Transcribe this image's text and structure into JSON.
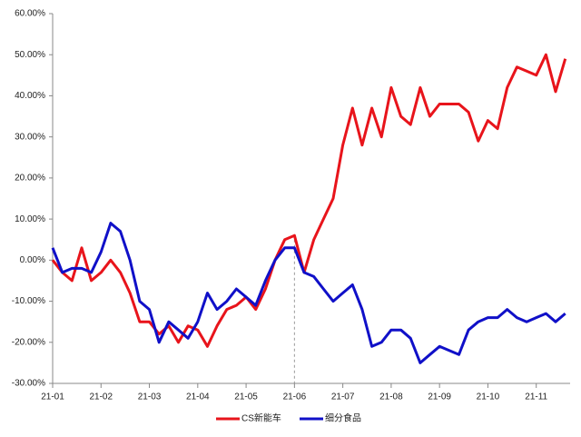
{
  "chart_data": {
    "type": "line",
    "x": [
      0,
      0.2,
      0.4,
      0.6,
      0.8,
      1,
      1.2,
      1.4,
      1.6,
      1.8,
      2,
      2.2,
      2.4,
      2.6,
      2.8,
      3,
      3.2,
      3.4,
      3.6,
      3.8,
      4,
      4.2,
      4.4,
      4.6,
      4.8,
      5,
      5.2,
      5.4,
      5.6,
      5.8,
      6,
      6.2,
      6.4,
      6.6,
      6.8,
      7,
      7.2,
      7.4,
      7.6,
      7.8,
      8,
      8.2,
      8.4,
      8.6,
      8.8,
      9,
      9.2,
      9.4,
      9.6,
      9.8,
      10,
      10.2,
      10.4,
      10.6
    ],
    "series": [
      {
        "name": "CS新能车",
        "color": "#e8141b",
        "values": [
          0,
          -3,
          -5,
          3,
          -5,
          -3,
          0,
          -3,
          -8,
          -15,
          -15,
          -18,
          -16,
          -20,
          -16,
          -17,
          -21,
          -16,
          -12,
          -11,
          -9,
          -12,
          -7,
          0,
          5,
          6,
          -3,
          5,
          10,
          15,
          28,
          37,
          28,
          37,
          30,
          42,
          35,
          33,
          42,
          35,
          38,
          38,
          38,
          36,
          29,
          34,
          32,
          42,
          47,
          46,
          45,
          50,
          41,
          49
        ]
      },
      {
        "name": "细分食品",
        "color": "#1010c8",
        "values": [
          3,
          -3,
          -2,
          -2,
          -3,
          2,
          9,
          7,
          0,
          -10,
          -12,
          -20,
          -15,
          -17,
          -19,
          -15,
          -8,
          -12,
          -10,
          -7,
          -9,
          -11,
          -5,
          0,
          3,
          3,
          -3,
          -4,
          -7,
          -10,
          -8,
          -6,
          -12,
          -21,
          -20,
          -17,
          -17,
          -19,
          -25,
          -23,
          -21,
          -22,
          -23,
          -17,
          -15,
          -14,
          -14,
          -12,
          -14,
          -15,
          -14,
          -13,
          -15,
          -13
        ]
      }
    ],
    "xlim": [
      0,
      10.7
    ],
    "xticks": [
      {
        "value": 0,
        "label": "21-01"
      },
      {
        "value": 1,
        "label": "21-02"
      },
      {
        "value": 2,
        "label": "21-03"
      },
      {
        "value": 3,
        "label": "21-04"
      },
      {
        "value": 4,
        "label": "21-05"
      },
      {
        "value": 5,
        "label": "21-06"
      },
      {
        "value": 6,
        "label": "21-07"
      },
      {
        "value": 7,
        "label": "21-08"
      },
      {
        "value": 8,
        "label": "21-09"
      },
      {
        "value": 9,
        "label": "21-10"
      },
      {
        "value": 10,
        "label": "21-11"
      }
    ],
    "ylim": [
      -30,
      60
    ],
    "yticks": [
      {
        "value": -30,
        "label": "-30.00%"
      },
      {
        "value": -20,
        "label": "-20.00%"
      },
      {
        "value": -10,
        "label": "-10.00%"
      },
      {
        "value": 0,
        "label": "0.00%"
      },
      {
        "value": 10,
        "label": "10.00%"
      },
      {
        "value": 20,
        "label": "20.00%"
      },
      {
        "value": 30,
        "label": "30.00%"
      },
      {
        "value": 40,
        "label": "40.00%"
      },
      {
        "value": 50,
        "label": "50.00%"
      },
      {
        "value": 60,
        "label": "60.00%"
      }
    ],
    "grid": false,
    "legend": "bottom"
  }
}
